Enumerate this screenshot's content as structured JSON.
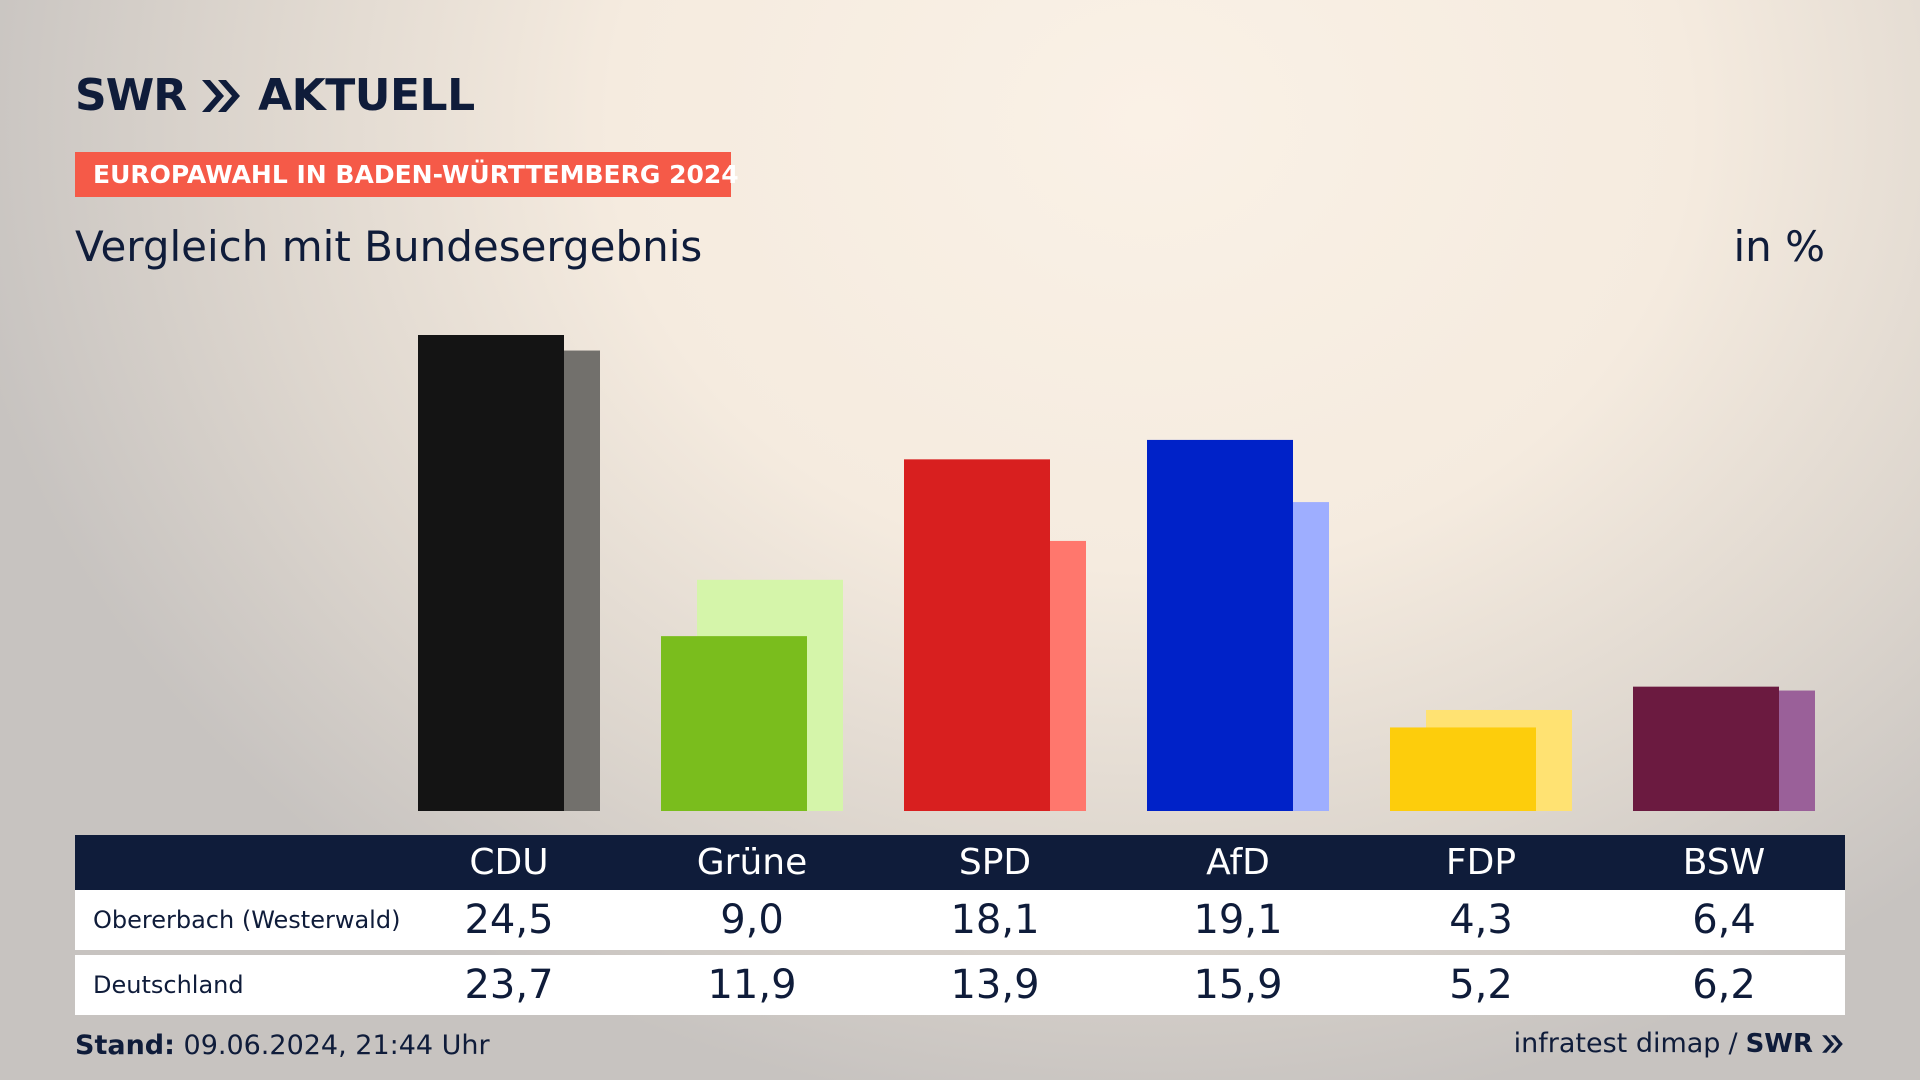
{
  "brand": {
    "swr": "SWR",
    "aktuell": "AKTUELL"
  },
  "banner": "EUROPAWAHL IN BADEN-WÜRTTEMBERG 2024",
  "subtitle": "Vergleich mit Bundesergebnis",
  "unit": "in %",
  "table": {
    "row1_label": "Obererbach (Westerwald)",
    "row2_label": "Deutschland"
  },
  "footer": {
    "stand_label": "Stand:",
    "stand_value": "09.06.2024, 21:44 Uhr",
    "source": "infratest dimap",
    "separator": "/",
    "swr": "SWR"
  },
  "chart_data": {
    "type": "bar",
    "categories": [
      "CDU",
      "Grüne",
      "SPD",
      "AfD",
      "FDP",
      "BSW"
    ],
    "series": [
      {
        "name": "Obererbach (Westerwald)",
        "values": [
          24.5,
          9.0,
          18.1,
          19.1,
          4.3,
          6.4
        ],
        "labels": [
          "24,5",
          "9,0",
          "18,1",
          "19,1",
          "4,3",
          "6,4"
        ]
      },
      {
        "name": "Deutschland",
        "values": [
          23.7,
          11.9,
          13.9,
          15.9,
          5.2,
          6.2
        ],
        "labels": [
          "23,7",
          "11,9",
          "13,9",
          "15,9",
          "5,2",
          "6,2"
        ]
      }
    ],
    "colors_primary": [
      "#141414",
      "#7abd1d",
      "#d81f1f",
      "#0022c8",
      "#fdcd0c",
      "#6b1a40"
    ],
    "colors_secondary": [
      "#72706c",
      "#d5f5aa",
      "#ff776d",
      "#9eaeff",
      "#ffe272",
      "#9a6099"
    ],
    "ylim": [
      0,
      24.5
    ],
    "grid": false,
    "legend": "table-below"
  }
}
